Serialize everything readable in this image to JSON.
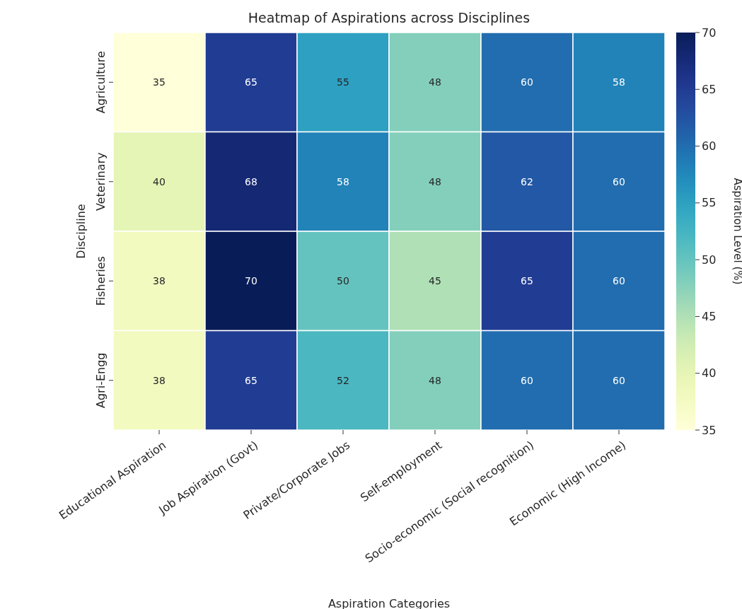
{
  "chart_data": {
    "type": "heatmap",
    "title": "Heatmap of Aspirations across Disciplines",
    "xlabel": "Aspiration Categories",
    "ylabel": "Discipline",
    "clabel": "Aspiration Level (%)",
    "categories": [
      "Educational Aspiration",
      "Job Aspiration (Govt)",
      "Private/Corporate Jobs",
      "Self-employment",
      "Socio-economic (Social recognition)",
      "Economic (High Income)"
    ],
    "y_categories": [
      "Agriculture",
      "Veterinary",
      "Fisheries",
      "Agri-Engg"
    ],
    "cells": [
      [
        35,
        65,
        55,
        48,
        60,
        58
      ],
      [
        40,
        68,
        58,
        48,
        62,
        60
      ],
      [
        38,
        70,
        50,
        45,
        65,
        60
      ],
      [
        38,
        65,
        52,
        48,
        60,
        60
      ]
    ],
    "clim": [
      35,
      70
    ],
    "cticks": [
      35,
      40,
      45,
      50,
      55,
      60,
      65,
      70
    ],
    "data_labels": true
  }
}
